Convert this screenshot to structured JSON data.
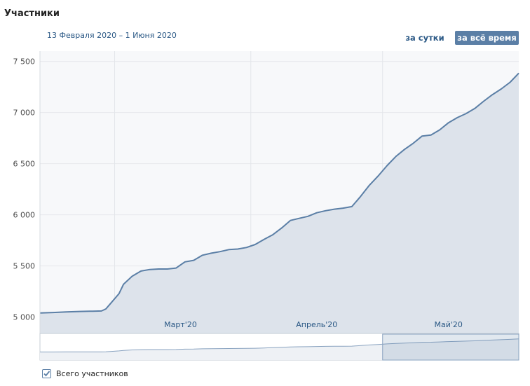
{
  "header": {
    "title": "Участники",
    "date_range": "13 Февраля 2020 – 1 Июня 2020",
    "range_day_label": "за сутки",
    "range_all_label": "за всё время"
  },
  "legend": {
    "series_label": "Всего участников",
    "checked": true
  },
  "colors": {
    "line": "#5b7fa6",
    "area": "#dde3eb",
    "active_button": "#5b7fa6",
    "link": "#2a5885"
  },
  "chart_data": {
    "type": "area",
    "title": "",
    "xlabel": "",
    "ylabel": "",
    "ylim": [
      4840,
      7600
    ],
    "xlim": [
      "2020-02-13",
      "2020-06-01"
    ],
    "yticks": [
      "5 000",
      "5 500",
      "6 000",
      "6 500",
      "7 000",
      "7 500"
    ],
    "ytick_values": [
      5000,
      5500,
      6000,
      6500,
      7000,
      7500
    ],
    "xticks": [
      "Март'20",
      "Апрель'20",
      "Май'20"
    ],
    "xtick_dates": [
      "2020-03-16",
      "2020-04-16",
      "2020-05-16"
    ],
    "month_boundaries": [
      "2020-03-01",
      "2020-04-01",
      "2020-05-01"
    ],
    "grid": true,
    "series": [
      {
        "name": "Всего участников",
        "points": [
          [
            "2020-02-13",
            5040
          ],
          [
            "2020-02-16",
            5045
          ],
          [
            "2020-02-19",
            5050
          ],
          [
            "2020-02-22",
            5055
          ],
          [
            "2020-02-25",
            5058
          ],
          [
            "2020-02-27",
            5060
          ],
          [
            "2020-02-28",
            5080
          ],
          [
            "2020-02-29",
            5130
          ],
          [
            "2020-03-02",
            5230
          ],
          [
            "2020-03-03",
            5320
          ],
          [
            "2020-03-05",
            5400
          ],
          [
            "2020-03-07",
            5450
          ],
          [
            "2020-03-09",
            5465
          ],
          [
            "2020-03-11",
            5470
          ],
          [
            "2020-03-13",
            5470
          ],
          [
            "2020-03-15",
            5480
          ],
          [
            "2020-03-17",
            5540
          ],
          [
            "2020-03-19",
            5555
          ],
          [
            "2020-03-21",
            5605
          ],
          [
            "2020-03-23",
            5625
          ],
          [
            "2020-03-25",
            5640
          ],
          [
            "2020-03-27",
            5660
          ],
          [
            "2020-03-29",
            5665
          ],
          [
            "2020-03-31",
            5680
          ],
          [
            "2020-04-02",
            5710
          ],
          [
            "2020-04-04",
            5760
          ],
          [
            "2020-04-06",
            5805
          ],
          [
            "2020-04-08",
            5870
          ],
          [
            "2020-04-10",
            5945
          ],
          [
            "2020-04-12",
            5965
          ],
          [
            "2020-04-14",
            5985
          ],
          [
            "2020-04-16",
            6020
          ],
          [
            "2020-04-18",
            6040
          ],
          [
            "2020-04-20",
            6055
          ],
          [
            "2020-04-22",
            6065
          ],
          [
            "2020-04-24",
            6080
          ],
          [
            "2020-04-26",
            6180
          ],
          [
            "2020-04-28",
            6290
          ],
          [
            "2020-04-30",
            6380
          ],
          [
            "2020-05-02",
            6480
          ],
          [
            "2020-05-04",
            6570
          ],
          [
            "2020-05-06",
            6640
          ],
          [
            "2020-05-08",
            6700
          ],
          [
            "2020-05-10",
            6770
          ],
          [
            "2020-05-12",
            6780
          ],
          [
            "2020-05-14",
            6830
          ],
          [
            "2020-05-16",
            6900
          ],
          [
            "2020-05-18",
            6950
          ],
          [
            "2020-05-20",
            6990
          ],
          [
            "2020-05-22",
            7040
          ],
          [
            "2020-05-24",
            7110
          ],
          [
            "2020-05-26",
            7175
          ],
          [
            "2020-05-28",
            7230
          ],
          [
            "2020-05-30",
            7295
          ],
          [
            "2020-06-01",
            7385
          ]
        ]
      }
    ]
  },
  "navigator": {
    "selection_start": "2020-05-01",
    "selection_end": "2020-06-01"
  }
}
